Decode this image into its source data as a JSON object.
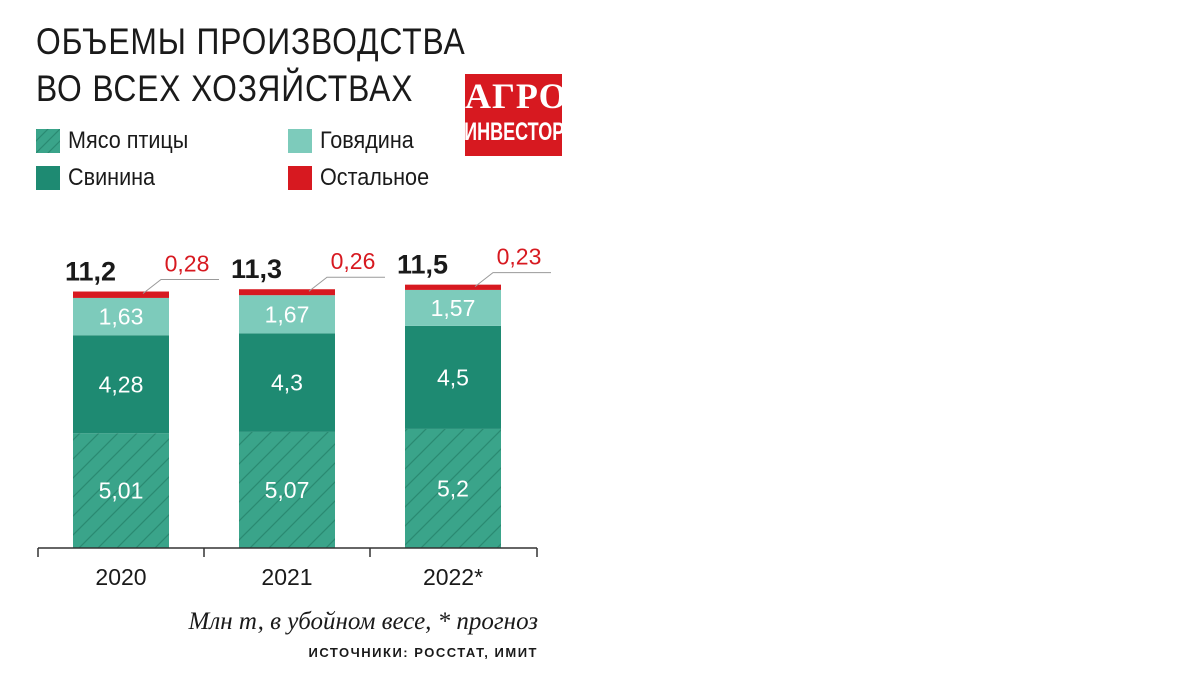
{
  "header": {
    "title_line1": "ОБЪЕМЫ ПРОИЗВОДСТВА",
    "title_line2": "ВО ВСЕХ ХОЗЯЙСТВАХ"
  },
  "logo": {
    "line1": "АГРО",
    "line2": "ИНВЕСТОР"
  },
  "footnote": "Млн т, в убойном весе, * прогноз",
  "source": "ИСТОЧНИКИ: РОССТАТ, ИМИТ",
  "colors": {
    "poultry": "#3aa48a",
    "poultry_hatch": "#2a8a72",
    "pork": "#1e8a72",
    "beef": "#7dcbbb",
    "other": "#d71920",
    "text": "#1a1a1a",
    "label_red": "#d71920"
  },
  "chart_data": {
    "type": "bar",
    "stacked": true,
    "categories": [
      "2020",
      "2021",
      "2022*"
    ],
    "series": [
      {
        "name": "Мясо птицы",
        "labels": [
          "5,01",
          "5,07",
          "5,2"
        ],
        "values": [
          5.01,
          5.07,
          5.2
        ]
      },
      {
        "name": "Свинина",
        "labels": [
          "4,28",
          "4,3",
          "4,5"
        ],
        "values": [
          4.28,
          4.3,
          4.5
        ]
      },
      {
        "name": "Говядина",
        "labels": [
          "1,63",
          "1,67",
          "1,57"
        ],
        "values": [
          1.63,
          1.67,
          1.57
        ]
      },
      {
        "name": "Остальное",
        "labels": [
          "0,28",
          "0,26",
          "0,23"
        ],
        "values": [
          0.28,
          0.26,
          0.23
        ]
      }
    ],
    "totals": {
      "labels": [
        "11,2",
        "11,3",
        "11,5"
      ],
      "values": [
        11.2,
        11.3,
        11.5
      ]
    },
    "legend": [
      {
        "name": "Мясо птицы",
        "color": "#3aa48a",
        "hatched": true
      },
      {
        "name": "Говядина",
        "color": "#7dcbbb",
        "hatched": false
      },
      {
        "name": "Свинина",
        "color": "#1e8a72",
        "hatched": false
      },
      {
        "name": "Остальное",
        "color": "#d71920",
        "hatched": false
      }
    ],
    "legend_position": "top-left",
    "grid": false,
    "ylim": [
      0,
      11.5
    ]
  }
}
